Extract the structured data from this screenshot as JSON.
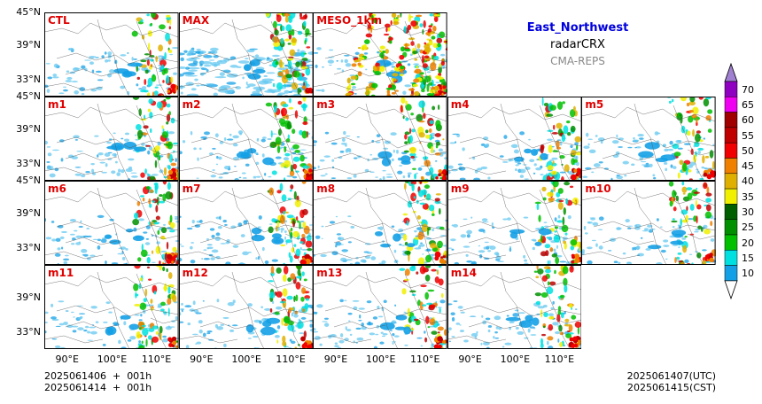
{
  "title": {
    "region": "East_Northwest",
    "variable": "radarCRX",
    "system": "CMA-REPS"
  },
  "panel_rows": [
    [
      "CTL",
      "MAX",
      "MESO_1km"
    ],
    [
      "m1",
      "m2",
      "m3",
      "m4",
      "m5"
    ],
    [
      "m6",
      "m7",
      "m8",
      "m9",
      "m10"
    ],
    [
      "m11",
      "m12",
      "m13",
      "m14"
    ]
  ],
  "axes": {
    "lat_ticks": [
      "45°N",
      "39°N",
      "33°N"
    ],
    "lon_ticks": [
      "90°E",
      "100°E",
      "110°E"
    ]
  },
  "colorbar": {
    "levels": [
      "10",
      "15",
      "20",
      "25",
      "30",
      "35",
      "40",
      "45",
      "50",
      "55",
      "60",
      "65",
      "70"
    ],
    "colors": [
      "#14a0e6",
      "#00e0e0",
      "#00c000",
      "#009000",
      "#006000",
      "#f0f000",
      "#e0b000",
      "#f08000",
      "#f00000",
      "#c00000",
      "#a00000",
      "#f000f0",
      "#9000c0",
      "#a080d0"
    ]
  },
  "footer": {
    "init_utc": "2025061406  +  001h",
    "init_cst": "2025061414  +  001h",
    "valid_utc": "2025061407(UTC)",
    "valid_cst": "2025061415(CST)"
  }
}
